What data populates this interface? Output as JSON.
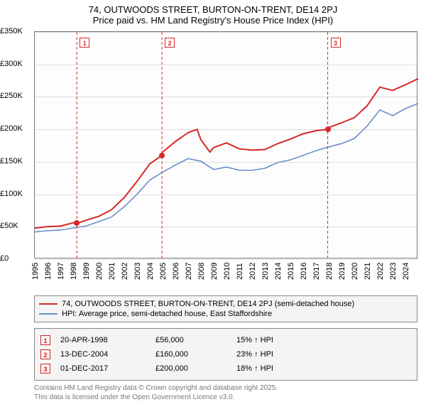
{
  "title": {
    "line1": "74, OUTWOODS STREET, BURTON-ON-TRENT, DE14 2PJ",
    "line2": "Price paid vs. HM Land Registry's House Price Index (HPI)"
  },
  "chart": {
    "type": "line",
    "background_color": "#fdfdfd",
    "grid_color": "#dddddd",
    "axis_color": "#777777",
    "x": {
      "min": 1995,
      "max": 2025,
      "ticks": [
        1995,
        1996,
        1997,
        1998,
        1999,
        2000,
        2001,
        2002,
        2003,
        2004,
        2005,
        2006,
        2007,
        2008,
        2009,
        2010,
        2011,
        2012,
        2013,
        2014,
        2015,
        2016,
        2017,
        2018,
        2019,
        2020,
        2021,
        2022,
        2023,
        2024
      ]
    },
    "y": {
      "min": 0,
      "max": 350000,
      "tick_step": 50000,
      "tick_labels": [
        "£0",
        "£50K",
        "£100K",
        "£150K",
        "£200K",
        "£250K",
        "£300K",
        "£350K"
      ]
    },
    "series": [
      {
        "id": "price_paid",
        "label": "74, OUTWOODS STREET, BURTON-ON-TRENT, DE14 2PJ (semi-detached house)",
        "color": "#d62728",
        "line_width": 2,
        "data": [
          [
            1995,
            48000
          ],
          [
            1996,
            49000
          ],
          [
            1997,
            51000
          ],
          [
            1998,
            56000
          ],
          [
            1998.29,
            56000
          ],
          [
            1999,
            60000
          ],
          [
            2000,
            66000
          ],
          [
            2001,
            75000
          ],
          [
            2002,
            95000
          ],
          [
            2003,
            120000
          ],
          [
            2004,
            148000
          ],
          [
            2004.95,
            160000
          ],
          [
            2005,
            165000
          ],
          [
            2006,
            180000
          ],
          [
            2007,
            195000
          ],
          [
            2007.7,
            200000
          ],
          [
            2008,
            185000
          ],
          [
            2008.7,
            165000
          ],
          [
            2009,
            172000
          ],
          [
            2010,
            178000
          ],
          [
            2011,
            170000
          ],
          [
            2012,
            168000
          ],
          [
            2013,
            170000
          ],
          [
            2014,
            178000
          ],
          [
            2015,
            185000
          ],
          [
            2016,
            192000
          ],
          [
            2017,
            198000
          ],
          [
            2017.92,
            200000
          ],
          [
            2018,
            204000
          ],
          [
            2019,
            210000
          ],
          [
            2020,
            218000
          ],
          [
            2021,
            235000
          ],
          [
            2022,
            265000
          ],
          [
            2023,
            260000
          ],
          [
            2024,
            270000
          ],
          [
            2025,
            278000
          ]
        ]
      },
      {
        "id": "hpi",
        "label": "HPI: Average price, semi-detached house, East Staffordshire",
        "color": "#6b8fc9",
        "line_width": 1.6,
        "data": [
          [
            1995,
            42000
          ],
          [
            1996,
            43000
          ],
          [
            1997,
            45000
          ],
          [
            1998,
            48000
          ],
          [
            1999,
            52000
          ],
          [
            2000,
            58000
          ],
          [
            2001,
            65000
          ],
          [
            2002,
            80000
          ],
          [
            2003,
            100000
          ],
          [
            2004,
            122000
          ],
          [
            2005,
            135000
          ],
          [
            2006,
            145000
          ],
          [
            2007,
            155000
          ],
          [
            2008,
            150000
          ],
          [
            2009,
            138000
          ],
          [
            2010,
            142000
          ],
          [
            2011,
            138000
          ],
          [
            2012,
            137000
          ],
          [
            2013,
            140000
          ],
          [
            2014,
            148000
          ],
          [
            2015,
            153000
          ],
          [
            2016,
            160000
          ],
          [
            2017,
            168000
          ],
          [
            2018,
            173000
          ],
          [
            2019,
            178000
          ],
          [
            2020,
            185000
          ],
          [
            2021,
            205000
          ],
          [
            2022,
            230000
          ],
          [
            2023,
            222000
          ],
          [
            2024,
            232000
          ],
          [
            2025,
            240000
          ]
        ]
      }
    ],
    "markers": [
      {
        "idx": "1",
        "year": 1998.29,
        "value": 56000
      },
      {
        "idx": "2",
        "year": 2004.95,
        "value": 160000
      },
      {
        "idx": "3",
        "year": 2017.92,
        "value": 200000
      }
    ]
  },
  "legend": {
    "items": [
      {
        "label": "74, OUTWOODS STREET, BURTON-ON-TRENT, DE14 2PJ (semi-detached house)",
        "color": "#d62728"
      },
      {
        "label": "HPI: Average price, semi-detached house, East Staffordshire",
        "color": "#6b8fc9"
      }
    ]
  },
  "sales": [
    {
      "idx": "1",
      "date": "20-APR-1998",
      "price": "£56,000",
      "hpi": "15% ↑ HPI"
    },
    {
      "idx": "2",
      "date": "13-DEC-2004",
      "price": "£160,000",
      "hpi": "23% ↑ HPI"
    },
    {
      "idx": "3",
      "date": "01-DEC-2017",
      "price": "£200,000",
      "hpi": "18% ↑ HPI"
    }
  ],
  "attribution": {
    "line1": "Contains HM Land Registry data © Crown copyright and database right 2025.",
    "line2": "This data is licensed under the Open Government Licence v3.0."
  }
}
